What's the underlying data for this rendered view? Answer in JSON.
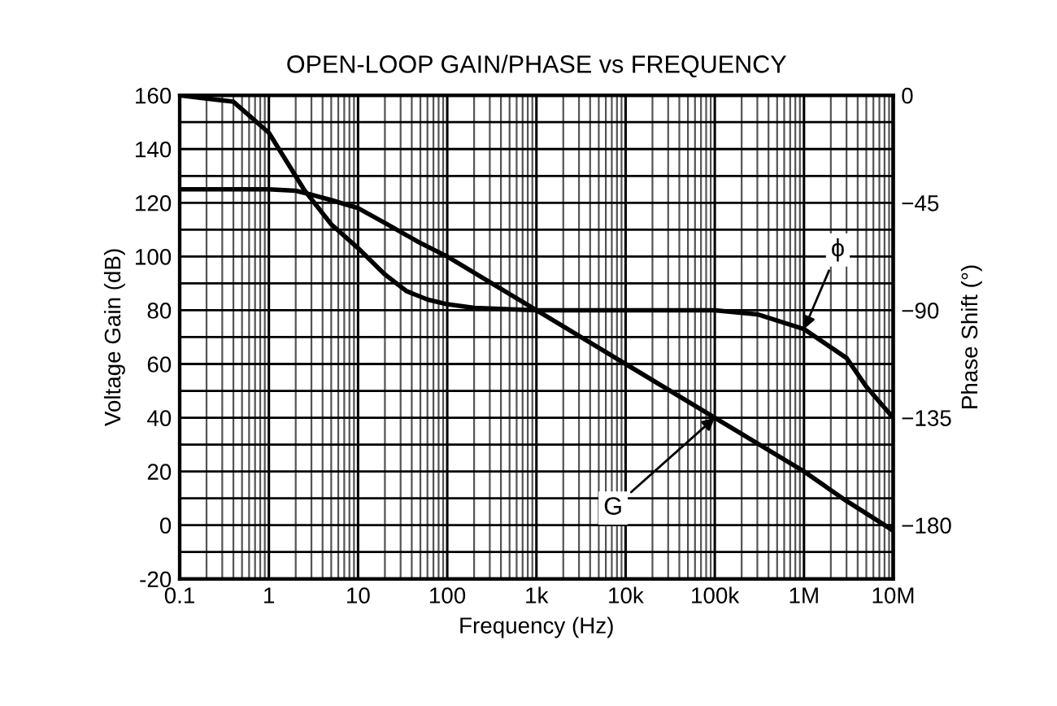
{
  "chart_data": {
    "type": "line",
    "title": "OPEN-LOOP GAIN/PHASE vs FREQUENCY",
    "xlabel": "Frequency (Hz)",
    "ylabel": "Voltage Gain (dB)",
    "y2label": "Phase Shift (°)",
    "log": "x",
    "grid": true,
    "marker": "none",
    "line_style": "solid",
    "xlim": [
      0.1,
      10000000
    ],
    "xticks": [
      0.1,
      1,
      10,
      100,
      {
        "value": 1000,
        "label": "1k"
      },
      {
        "value": 10000,
        "label": "10k"
      },
      {
        "value": 100000,
        "label": "100k"
      },
      {
        "value": 1000000,
        "label": "1M"
      },
      {
        "value": 10000000,
        "label": "10M"
      }
    ],
    "ylim": [
      -20,
      160
    ],
    "yticks": [
      -20,
      0,
      20,
      40,
      60,
      80,
      100,
      120,
      140,
      160
    ],
    "y2lim": [
      -202.5,
      0
    ],
    "y2ticks": [
      0,
      {
        "value": -45,
        "label": "−45"
      },
      {
        "value": -90,
        "label": "−90"
      },
      {
        "value": -135,
        "label": "−135"
      },
      {
        "value": -180,
        "label": "−180"
      }
    ],
    "series": [
      {
        "color": "#000000",
        "x": [
          0.1,
          1,
          2,
          3,
          5,
          10,
          20,
          50,
          100,
          1000,
          10000,
          100000,
          1000000,
          3000000,
          10000000
        ],
        "values": [
          125,
          125,
          124.5,
          123,
          121,
          118,
          112.5,
          105,
          100,
          80,
          60,
          40,
          20,
          9,
          -2
        ]
      },
      {
        "color": "#000000",
        "axis": "y2",
        "x": [
          0.1,
          0.4,
          1,
          2.5,
          5,
          10,
          20,
          35,
          60,
          100,
          200,
          1000,
          10000,
          100000,
          300000,
          1000000,
          3000000,
          5000000,
          10000000
        ],
        "values": [
          0,
          -2.7,
          -15.7,
          -39.7,
          -54,
          -64,
          -75,
          -82,
          -85.5,
          -87.5,
          -89,
          -90,
          -90,
          -90,
          -91.7,
          -97.9,
          -110,
          -122,
          -135
        ]
      }
    ],
    "annotations": [
      {
        "text": "G",
        "x": 100000,
        "y": 40
      },
      {
        "text": "ϕ",
        "x": 1000000,
        "y": 73
      }
    ]
  }
}
